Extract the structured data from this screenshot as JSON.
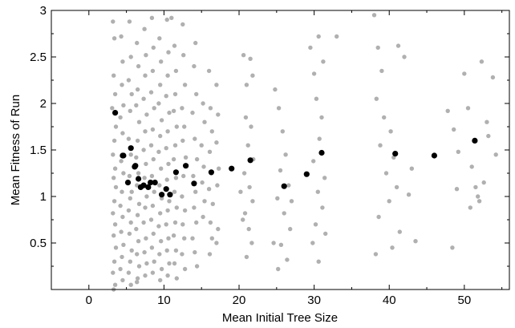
{
  "chart_data": {
    "type": "scatter",
    "title": "",
    "xlabel": "Mean Initial Tree Size",
    "ylabel": "Mean Fitness of Run",
    "xlim": [
      -5,
      56
    ],
    "ylim": [
      0,
      3
    ],
    "x_ticks": [
      0,
      10,
      20,
      30,
      40,
      50
    ],
    "y_ticks": [
      0.5,
      1,
      1.5,
      2,
      2.5,
      3
    ],
    "x_tick_labels": [
      "0",
      "10",
      "20",
      "30",
      "40",
      "50"
    ],
    "y_tick_labels": [
      "0.5",
      "1",
      "1.5",
      "2",
      "2.5",
      "3"
    ],
    "grid": false,
    "legend": "none",
    "series": [
      {
        "color": "#b0b0b0",
        "points": [
          [
            3.2,
            2.88
          ],
          [
            3.4,
            2.7
          ],
          [
            3.3,
            2.3
          ],
          [
            3.5,
            2.1
          ],
          [
            3.1,
            1.95
          ],
          [
            3.6,
            1.75
          ],
          [
            3.4,
            1.6
          ],
          [
            3.2,
            1.45
          ],
          [
            3.5,
            1.3
          ],
          [
            3.3,
            1.2
          ],
          [
            3.6,
            1.1
          ],
          [
            3.4,
            0.95
          ],
          [
            3.2,
            0.82
          ],
          [
            3.5,
            0.7
          ],
          [
            3.3,
            0.58
          ],
          [
            3.6,
            0.45
          ],
          [
            3.4,
            0.3
          ],
          [
            3.2,
            0.18
          ],
          [
            3.5,
            0.05
          ],
          [
            3.3,
            0.0
          ],
          [
            4.3,
            2.72
          ],
          [
            4.5,
            2.45
          ],
          [
            4.4,
            2.2
          ],
          [
            4.6,
            1.98
          ],
          [
            4.2,
            1.85
          ],
          [
            4.5,
            1.68
          ],
          [
            4.3,
            1.38
          ],
          [
            4.6,
            1.25
          ],
          [
            4.4,
            1.05
          ],
          [
            4.2,
            0.9
          ],
          [
            4.5,
            0.78
          ],
          [
            4.3,
            0.62
          ],
          [
            4.6,
            0.48
          ],
          [
            4.4,
            0.35
          ],
          [
            4.2,
            0.22
          ],
          [
            4.5,
            0.1
          ],
          [
            5.4,
            2.88
          ],
          [
            5.6,
            2.5
          ],
          [
            5.3,
            2.25
          ],
          [
            5.7,
            2.1
          ],
          [
            5.5,
            1.92
          ],
          [
            5.3,
            1.62
          ],
          [
            5.6,
            1.45
          ],
          [
            5.4,
            1.22
          ],
          [
            5.7,
            1.05
          ],
          [
            5.5,
            0.98
          ],
          [
            5.3,
            0.85
          ],
          [
            5.6,
            0.72
          ],
          [
            5.4,
            0.6
          ],
          [
            5.7,
            0.42
          ],
          [
            5.5,
            0.3
          ],
          [
            5.3,
            0.18
          ],
          [
            5.6,
            0.05
          ],
          [
            6.4,
            2.65
          ],
          [
            6.6,
            2.4
          ],
          [
            6.5,
            2.15
          ],
          [
            6.3,
            1.98
          ],
          [
            6.7,
            1.8
          ],
          [
            6.5,
            1.6
          ],
          [
            6.3,
            1.42
          ],
          [
            6.6,
            1.25
          ],
          [
            6.4,
            1.12
          ],
          [
            6.7,
            0.92
          ],
          [
            6.5,
            0.8
          ],
          [
            6.3,
            0.65
          ],
          [
            6.6,
            0.52
          ],
          [
            6.4,
            0.38
          ],
          [
            6.7,
            0.25
          ],
          [
            6.5,
            0.12
          ],
          [
            6.4,
            0.08
          ],
          [
            7.4,
            2.8
          ],
          [
            7.6,
            2.52
          ],
          [
            7.5,
            2.3
          ],
          [
            7.3,
            2.05
          ],
          [
            7.7,
            1.88
          ],
          [
            7.5,
            1.7
          ],
          [
            7.3,
            1.5
          ],
          [
            7.6,
            1.35
          ],
          [
            7.4,
            1.2
          ],
          [
            7.7,
            1.0
          ],
          [
            7.5,
            0.88
          ],
          [
            7.3,
            0.72
          ],
          [
            7.6,
            0.55
          ],
          [
            7.4,
            0.4
          ],
          [
            7.7,
            0.28
          ],
          [
            7.5,
            0.15
          ],
          [
            8.4,
            2.92
          ],
          [
            8.6,
            2.6
          ],
          [
            8.5,
            2.35
          ],
          [
            8.3,
            2.12
          ],
          [
            8.7,
            1.95
          ],
          [
            8.5,
            1.72
          ],
          [
            8.3,
            1.55
          ],
          [
            8.6,
            1.4
          ],
          [
            8.4,
            1.22
          ],
          [
            8.7,
            1.05
          ],
          [
            8.5,
            0.9
          ],
          [
            8.3,
            0.75
          ],
          [
            8.6,
            0.6
          ],
          [
            8.4,
            0.45
          ],
          [
            8.7,
            0.3
          ],
          [
            8.5,
            0.18
          ],
          [
            9.4,
            2.7
          ],
          [
            9.6,
            2.45
          ],
          [
            9.5,
            2.2
          ],
          [
            9.3,
            2.0
          ],
          [
            9.7,
            1.82
          ],
          [
            9.5,
            1.65
          ],
          [
            9.3,
            1.48
          ],
          [
            9.6,
            1.3
          ],
          [
            9.4,
            1.12
          ],
          [
            9.7,
            0.98
          ],
          [
            9.5,
            0.82
          ],
          [
            9.3,
            0.68
          ],
          [
            9.6,
            0.52
          ],
          [
            9.4,
            0.38
          ],
          [
            9.7,
            0.22
          ],
          [
            9.5,
            0.1
          ],
          [
            10.4,
            2.9
          ],
          [
            10.6,
            2.55
          ],
          [
            10.5,
            2.3
          ],
          [
            10.3,
            2.08
          ],
          [
            10.7,
            1.9
          ],
          [
            10.5,
            1.7
          ],
          [
            10.3,
            1.52
          ],
          [
            10.6,
            1.35
          ],
          [
            10.4,
            1.18
          ],
          [
            10.7,
            0.95
          ],
          [
            10.5,
            0.85
          ],
          [
            10.3,
            0.7
          ],
          [
            10.6,
            0.55
          ],
          [
            10.4,
            0.42
          ],
          [
            10.7,
            0.28
          ],
          [
            10.5,
            0.15
          ],
          [
            11.0,
            2.92
          ],
          [
            11.4,
            2.62
          ],
          [
            11.6,
            2.35
          ],
          [
            11.5,
            2.1
          ],
          [
            11.3,
            1.92
          ],
          [
            11.7,
            1.75
          ],
          [
            11.5,
            1.55
          ],
          [
            11.3,
            1.4
          ],
          [
            11.6,
            1.2
          ],
          [
            11.4,
            1.05
          ],
          [
            11.7,
            0.88
          ],
          [
            11.5,
            0.72
          ],
          [
            11.3,
            0.58
          ],
          [
            11.6,
            0.42
          ],
          [
            11.4,
            0.28
          ],
          [
            11.7,
            0.12
          ],
          [
            12.5,
            2.85
          ],
          [
            12.6,
            2.52
          ],
          [
            12.8,
            2.2
          ],
          [
            12.4,
            1.95
          ],
          [
            12.7,
            1.75
          ],
          [
            12.5,
            1.6
          ],
          [
            12.9,
            1.42
          ],
          [
            12.6,
            1.22
          ],
          [
            12.4,
            1.0
          ],
          [
            12.8,
            0.85
          ],
          [
            12.5,
            0.7
          ],
          [
            12.7,
            0.55
          ],
          [
            12.4,
            0.38
          ],
          [
            12.8,
            0.22
          ],
          [
            14.2,
            2.65
          ],
          [
            14.0,
            2.4
          ],
          [
            14.3,
            2.1
          ],
          [
            13.8,
            1.9
          ],
          [
            14.1,
            1.62
          ],
          [
            14.4,
            1.4
          ],
          [
            13.9,
            1.22
          ],
          [
            14.2,
            1.05
          ],
          [
            14.0,
            0.88
          ],
          [
            14.3,
            0.72
          ],
          [
            13.8,
            0.55
          ],
          [
            14.1,
            0.4
          ],
          [
            14.4,
            0.25
          ],
          [
            15.2,
            2.0
          ],
          [
            15.4,
            1.8
          ],
          [
            15.0,
            1.55
          ],
          [
            15.3,
            1.32
          ],
          [
            15.1,
            1.15
          ],
          [
            15.4,
            0.95
          ],
          [
            15.2,
            0.78
          ],
          [
            16.0,
            2.35
          ],
          [
            16.2,
            1.95
          ],
          [
            16.4,
            1.7
          ],
          [
            16.1,
            1.48
          ],
          [
            16.3,
            1.25
          ],
          [
            16.0,
            1.08
          ],
          [
            16.5,
            0.92
          ],
          [
            16.2,
            0.72
          ],
          [
            16.4,
            0.55
          ],
          [
            16.1,
            0.38
          ],
          [
            17.0,
            2.2
          ],
          [
            17.2,
            1.88
          ],
          [
            17.0,
            1.58
          ],
          [
            17.3,
            1.3
          ],
          [
            17.1,
            1.12
          ],
          [
            17.2,
            0.65
          ],
          [
            17.0,
            0.5
          ],
          [
            20.6,
            2.52
          ],
          [
            21.0,
            2.2
          ],
          [
            21.5,
            2.48
          ],
          [
            21.8,
            2.3
          ],
          [
            20.9,
            1.85
          ],
          [
            21.6,
            1.75
          ],
          [
            21.2,
            1.55
          ],
          [
            21.9,
            1.4
          ],
          [
            20.7,
            1.25
          ],
          [
            21.4,
            1.1
          ],
          [
            21.8,
            0.95
          ],
          [
            20.8,
            0.82
          ],
          [
            21.3,
            0.65
          ],
          [
            21.7,
            0.5
          ],
          [
            21.0,
            0.35
          ],
          [
            20.2,
            1.05
          ],
          [
            20.5,
            0.75
          ],
          [
            24.8,
            2.15
          ],
          [
            25.3,
            1.95
          ],
          [
            25.8,
            1.7
          ],
          [
            26.2,
            1.45
          ],
          [
            25.5,
            1.28
          ],
          [
            26.6,
            1.12
          ],
          [
            25.1,
            0.98
          ],
          [
            26.0,
            0.82
          ],
          [
            26.8,
            0.65
          ],
          [
            25.6,
            0.48
          ],
          [
            26.4,
            0.32
          ],
          [
            25.2,
            0.22
          ],
          [
            24.6,
            0.5
          ],
          [
            27.0,
            0.95
          ],
          [
            29.5,
            2.6
          ],
          [
            30.0,
            2.32
          ],
          [
            30.6,
            2.72
          ],
          [
            31.2,
            2.45
          ],
          [
            30.3,
            2.05
          ],
          [
            31.0,
            1.85
          ],
          [
            30.7,
            1.62
          ],
          [
            29.9,
            1.38
          ],
          [
            31.4,
            1.2
          ],
          [
            30.5,
            1.05
          ],
          [
            31.1,
            0.88
          ],
          [
            30.2,
            0.7
          ],
          [
            29.8,
            0.5
          ],
          [
            30.6,
            0.3
          ],
          [
            31.5,
            0.6
          ],
          [
            33.0,
            2.72
          ],
          [
            38.0,
            2.95
          ],
          [
            38.5,
            2.6
          ],
          [
            39.0,
            2.35
          ],
          [
            38.3,
            2.05
          ],
          [
            39.3,
            1.85
          ],
          [
            40.2,
            1.7
          ],
          [
            38.8,
            1.55
          ],
          [
            40.6,
            1.42
          ],
          [
            39.6,
            1.25
          ],
          [
            41.0,
            1.1
          ],
          [
            40.0,
            0.95
          ],
          [
            38.6,
            0.78
          ],
          [
            41.4,
            0.62
          ],
          [
            40.4,
            0.45
          ],
          [
            38.2,
            0.38
          ],
          [
            42.0,
            2.5
          ],
          [
            41.2,
            2.62
          ],
          [
            43.0,
            1.3
          ],
          [
            43.5,
            0.52
          ],
          [
            42.6,
            1.02
          ],
          [
            47.8,
            1.92
          ],
          [
            48.6,
            1.72
          ],
          [
            49.2,
            1.48
          ],
          [
            50.0,
            2.32
          ],
          [
            50.5,
            1.95
          ],
          [
            51.0,
            1.32
          ],
          [
            51.5,
            1.1
          ],
          [
            52.0,
            0.95
          ],
          [
            52.6,
            1.15
          ],
          [
            53.2,
            1.65
          ],
          [
            53.8,
            2.28
          ],
          [
            54.2,
            1.45
          ],
          [
            52.3,
            2.45
          ],
          [
            51.8,
            1.0
          ],
          [
            49.0,
            1.08
          ],
          [
            48.4,
            0.45
          ],
          [
            53.0,
            1.8
          ],
          [
            50.8,
            0.88
          ]
        ]
      },
      {
        "color": "#000000",
        "points": [
          [
            3.5,
            1.9
          ],
          [
            4.5,
            1.44
          ],
          [
            4.6,
            1.44
          ],
          [
            5.2,
            1.15
          ],
          [
            5.6,
            1.52
          ],
          [
            6.1,
            1.32
          ],
          [
            6.2,
            1.33
          ],
          [
            6.6,
            1.19
          ],
          [
            6.9,
            1.1
          ],
          [
            7.3,
            1.12
          ],
          [
            7.9,
            1.1
          ],
          [
            8.2,
            1.15
          ],
          [
            8.8,
            1.15
          ],
          [
            9.7,
            1.02
          ],
          [
            10.3,
            1.08
          ],
          [
            10.8,
            1.02
          ],
          [
            11.6,
            1.26
          ],
          [
            12.9,
            1.33
          ],
          [
            14.0,
            1.14
          ],
          [
            16.3,
            1.26
          ],
          [
            19.0,
            1.3
          ],
          [
            21.5,
            1.39
          ],
          [
            26.0,
            1.11
          ],
          [
            29.0,
            1.24
          ],
          [
            31.0,
            1.47
          ],
          [
            40.8,
            1.46
          ],
          [
            46.0,
            1.44
          ],
          [
            51.4,
            1.6
          ]
        ]
      }
    ]
  }
}
